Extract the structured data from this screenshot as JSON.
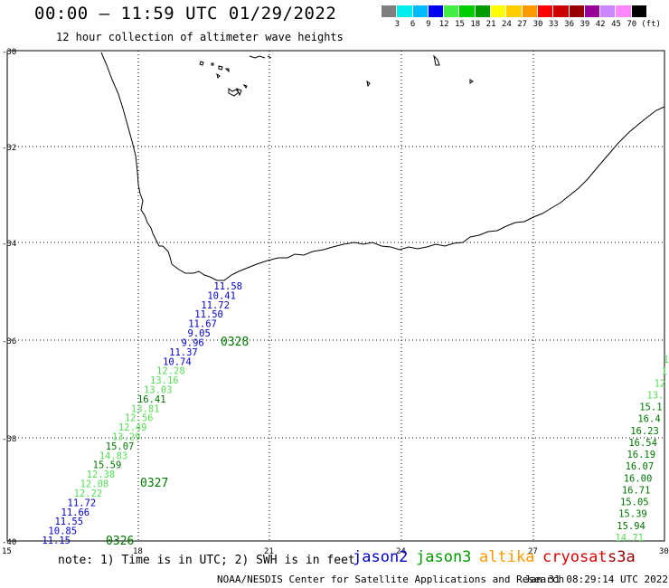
{
  "header": {
    "title": "00:00 – 11:59 UTC 01/29/2022",
    "subtitle": "12 hour collection of altimeter wave heights"
  },
  "legend": {
    "colors": [
      "#7f7f7f",
      "#00eeee",
      "#00bbff",
      "#0000ee",
      "#44ee44",
      "#00cc00",
      "#009900",
      "#ffff00",
      "#ffcc00",
      "#ff9900",
      "#ff0000",
      "#cc0000",
      "#990000",
      "#990099",
      "#cc88ff",
      "#ff88ff",
      "#000000"
    ],
    "ticks": [
      "3",
      "6",
      "9",
      "12",
      "15",
      "18",
      "21",
      "24",
      "27",
      "30",
      "33",
      "36",
      "39",
      "42",
      "45",
      "70",
      "(ft)"
    ]
  },
  "axes": {
    "lat_labels": [
      "-30",
      "-32",
      "-34",
      "-36",
      "-38",
      "-40"
    ],
    "lon_labels": [
      "15",
      "18",
      "21",
      "24",
      "27",
      "30"
    ]
  },
  "tracks": {
    "jason2_color": "#0000cc",
    "jason3_color": "#007700",
    "light_color": "#55dd55",
    "left_values": [
      {
        "v": "11.58",
        "c": "b"
      },
      {
        "v": "10.41",
        "c": "b"
      },
      {
        "v": "11.72",
        "c": "b"
      },
      {
        "v": "11.50",
        "c": "b"
      },
      {
        "v": "11.67",
        "c": "b"
      },
      {
        "v": "9.05",
        "c": "b"
      },
      {
        "v": "9.96",
        "c": "b"
      },
      {
        "v": "11.37",
        "c": "b"
      },
      {
        "v": "10.74",
        "c": "b"
      },
      {
        "v": "12.28",
        "c": "l"
      },
      {
        "v": "13.16",
        "c": "l"
      },
      {
        "v": "13.03",
        "c": "l"
      },
      {
        "v": "16.41",
        "c": "g"
      },
      {
        "v": "13.81",
        "c": "l"
      },
      {
        "v": "12.56",
        "c": "l"
      },
      {
        "v": "12.49",
        "c": "l"
      },
      {
        "v": "13.29",
        "c": "l"
      },
      {
        "v": "15.07",
        "c": "g"
      },
      {
        "v": "14.83",
        "c": "l"
      },
      {
        "v": "15.59",
        "c": "g"
      },
      {
        "v": "12.38",
        "c": "l"
      },
      {
        "v": "12.08",
        "c": "l"
      },
      {
        "v": "12.22",
        "c": "l"
      },
      {
        "v": "11.72",
        "c": "b"
      },
      {
        "v": "11.66",
        "c": "b"
      },
      {
        "v": "11.55",
        "c": "b"
      },
      {
        "v": "10.85",
        "c": "b"
      },
      {
        "v": "11.15",
        "c": "b"
      }
    ],
    "right_values": [
      {
        "v": "1",
        "c": "l"
      },
      {
        "v": "1",
        "c": "l"
      },
      {
        "v": "12",
        "c": "l"
      },
      {
        "v": "13.",
        "c": "l"
      },
      {
        "v": "15.1",
        "c": "g"
      },
      {
        "v": "16.4",
        "c": "g"
      },
      {
        "v": "16.23",
        "c": "g"
      },
      {
        "v": "16.54",
        "c": "g"
      },
      {
        "v": "16.19",
        "c": "g"
      },
      {
        "v": "16.07",
        "c": "g"
      },
      {
        "v": "16.00",
        "c": "g"
      },
      {
        "v": "16.71",
        "c": "g"
      },
      {
        "v": "15.05",
        "c": "g"
      },
      {
        "v": "15.39",
        "c": "g"
      },
      {
        "v": "15.94",
        "c": "g"
      },
      {
        "v": "14.71",
        "c": "l"
      }
    ],
    "time_labels": [
      "0328",
      "0327",
      "0326"
    ]
  },
  "footer": {
    "note": "note: 1) Time is in UTC; 2) SWH is in feet",
    "satellites": [
      {
        "name": "jason2",
        "color": "#0000cc"
      },
      {
        "name": "jason3",
        "color": "#009900"
      },
      {
        "name": "altika",
        "color": "#ff9900"
      },
      {
        "name": "cryosat",
        "color": "#dd0000"
      },
      {
        "name": "s3a",
        "color": "#990000"
      }
    ],
    "credit": "NOAA/NESDIS Center for Satellite Applications and Research",
    "generated": "Jan 31 08:29:14 UTC 2022"
  }
}
